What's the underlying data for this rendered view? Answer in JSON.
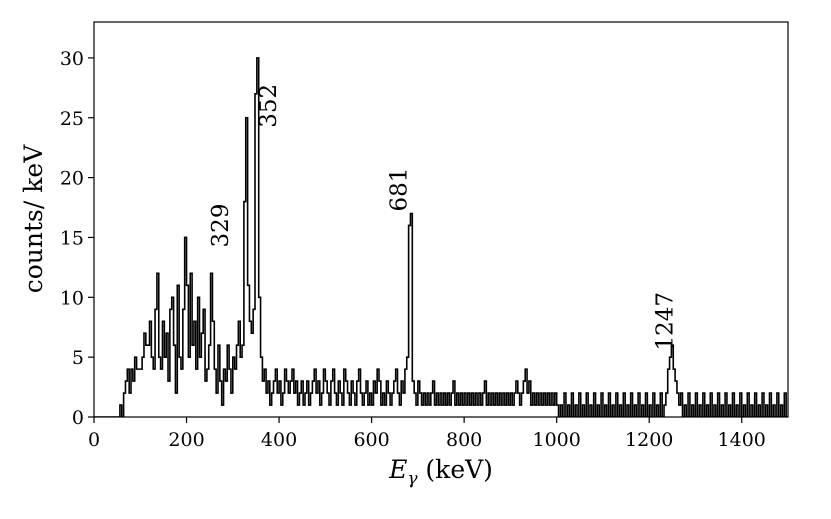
{
  "chart_data": {
    "type": "histogram",
    "title": "",
    "xlabel_main": "E",
    "xlabel_sub": "γ",
    "xlabel_unit": " (keV)",
    "ylabel": "counts/ keV",
    "xlim": [
      0,
      1500
    ],
    "ylim": [
      0,
      33
    ],
    "grid": false,
    "legend": "none",
    "line_color": "#000000",
    "bin_width_kev": 4,
    "x_ticks": [
      0,
      200,
      400,
      600,
      800,
      1000,
      1200,
      1400
    ],
    "y_ticks": [
      0,
      5,
      10,
      15,
      20,
      25,
      30
    ],
    "x_tick_labels": [
      "0",
      "200",
      "400",
      "600",
      "800",
      "1000",
      "1200",
      "1400"
    ],
    "y_tick_labels": [
      "0",
      "5",
      "10",
      "15",
      "20",
      "25",
      "30"
    ],
    "annotations": [
      {
        "text": "329",
        "x": 290,
        "y": 16
      },
      {
        "text": "352",
        "x": 393,
        "y": 26
      },
      {
        "text": "681",
        "x": 675,
        "y": 19
      },
      {
        "text": "1247",
        "x": 1250,
        "y": 8
      }
    ],
    "points": [
      [
        56,
        1
      ],
      [
        64,
        2
      ],
      [
        68,
        3
      ],
      [
        72,
        4
      ],
      [
        76,
        2
      ],
      [
        80,
        4
      ],
      [
        84,
        3
      ],
      [
        88,
        5
      ],
      [
        92,
        4
      ],
      [
        96,
        4
      ],
      [
        100,
        4
      ],
      [
        104,
        5
      ],
      [
        108,
        7
      ],
      [
        112,
        6
      ],
      [
        116,
        6
      ],
      [
        120,
        8
      ],
      [
        124,
        5
      ],
      [
        128,
        4
      ],
      [
        132,
        9
      ],
      [
        136,
        12
      ],
      [
        140,
        5
      ],
      [
        144,
        4
      ],
      [
        148,
        8
      ],
      [
        152,
        5
      ],
      [
        156,
        7
      ],
      [
        160,
        3
      ],
      [
        164,
        9
      ],
      [
        168,
        10
      ],
      [
        172,
        6
      ],
      [
        176,
        2
      ],
      [
        180,
        11
      ],
      [
        184,
        5
      ],
      [
        188,
        4
      ],
      [
        192,
        9
      ],
      [
        196,
        15
      ],
      [
        200,
        11
      ],
      [
        204,
        5
      ],
      [
        208,
        12
      ],
      [
        212,
        6
      ],
      [
        216,
        8
      ],
      [
        220,
        4
      ],
      [
        224,
        10
      ],
      [
        228,
        5
      ],
      [
        232,
        7
      ],
      [
        236,
        9
      ],
      [
        240,
        3
      ],
      [
        244,
        4
      ],
      [
        248,
        6
      ],
      [
        252,
        12
      ],
      [
        256,
        8
      ],
      [
        260,
        4
      ],
      [
        264,
        2
      ],
      [
        268,
        6
      ],
      [
        272,
        3
      ],
      [
        276,
        1
      ],
      [
        280,
        4
      ],
      [
        284,
        3
      ],
      [
        288,
        6
      ],
      [
        292,
        4
      ],
      [
        296,
        2
      ],
      [
        300,
        5
      ],
      [
        304,
        4
      ],
      [
        308,
        6
      ],
      [
        312,
        8
      ],
      [
        316,
        5
      ],
      [
        320,
        6
      ],
      [
        324,
        18
      ],
      [
        328,
        25
      ],
      [
        332,
        11
      ],
      [
        336,
        8
      ],
      [
        340,
        7
      ],
      [
        344,
        9
      ],
      [
        348,
        27
      ],
      [
        352,
        30
      ],
      [
        356,
        10
      ],
      [
        360,
        5
      ],
      [
        364,
        3
      ],
      [
        368,
        4
      ],
      [
        372,
        2
      ],
      [
        376,
        3
      ],
      [
        380,
        1
      ],
      [
        384,
        2
      ],
      [
        388,
        3
      ],
      [
        392,
        4
      ],
      [
        396,
        2
      ],
      [
        400,
        3
      ],
      [
        404,
        1
      ],
      [
        408,
        2
      ],
      [
        412,
        4
      ],
      [
        416,
        3
      ],
      [
        420,
        2
      ],
      [
        424,
        3
      ],
      [
        428,
        4
      ],
      [
        432,
        2
      ],
      [
        436,
        3
      ],
      [
        440,
        1
      ],
      [
        444,
        2
      ],
      [
        448,
        3
      ],
      [
        452,
        1
      ],
      [
        456,
        2
      ],
      [
        460,
        3
      ],
      [
        464,
        1
      ],
      [
        468,
        2
      ],
      [
        472,
        3
      ],
      [
        476,
        4
      ],
      [
        480,
        2
      ],
      [
        484,
        3
      ],
      [
        488,
        1
      ],
      [
        492,
        2
      ],
      [
        496,
        4
      ],
      [
        500,
        3
      ],
      [
        504,
        2
      ],
      [
        508,
        1
      ],
      [
        512,
        3
      ],
      [
        516,
        4
      ],
      [
        520,
        2
      ],
      [
        524,
        1
      ],
      [
        528,
        3
      ],
      [
        532,
        2
      ],
      [
        536,
        1
      ],
      [
        540,
        4
      ],
      [
        544,
        3
      ],
      [
        548,
        2
      ],
      [
        552,
        1
      ],
      [
        556,
        3
      ],
      [
        560,
        2
      ],
      [
        564,
        1
      ],
      [
        568,
        3
      ],
      [
        572,
        4
      ],
      [
        576,
        2
      ],
      [
        580,
        1
      ],
      [
        584,
        2
      ],
      [
        588,
        3
      ],
      [
        592,
        1
      ],
      [
        596,
        2
      ],
      [
        600,
        1
      ],
      [
        604,
        3
      ],
      [
        608,
        2
      ],
      [
        612,
        4
      ],
      [
        616,
        3
      ],
      [
        620,
        1
      ],
      [
        624,
        2
      ],
      [
        628,
        1
      ],
      [
        632,
        3
      ],
      [
        636,
        2
      ],
      [
        640,
        1
      ],
      [
        644,
        2
      ],
      [
        648,
        3
      ],
      [
        652,
        4
      ],
      [
        656,
        2
      ],
      [
        660,
        1
      ],
      [
        664,
        3
      ],
      [
        668,
        2
      ],
      [
        672,
        4
      ],
      [
        676,
        5
      ],
      [
        680,
        16
      ],
      [
        684,
        17
      ],
      [
        688,
        3
      ],
      [
        692,
        2
      ],
      [
        696,
        1
      ],
      [
        700,
        3
      ],
      [
        704,
        2
      ],
      [
        708,
        1
      ],
      [
        712,
        2
      ],
      [
        716,
        1
      ],
      [
        720,
        2
      ],
      [
        724,
        1
      ],
      [
        728,
        2
      ],
      [
        732,
        3
      ],
      [
        736,
        1
      ],
      [
        740,
        2
      ],
      [
        744,
        1
      ],
      [
        748,
        2
      ],
      [
        752,
        1
      ],
      [
        756,
        2
      ],
      [
        760,
        1
      ],
      [
        764,
        2
      ],
      [
        768,
        1
      ],
      [
        772,
        2
      ],
      [
        776,
        3
      ],
      [
        780,
        1
      ],
      [
        784,
        2
      ],
      [
        788,
        1
      ],
      [
        792,
        2
      ],
      [
        796,
        1
      ],
      [
        800,
        2
      ],
      [
        804,
        1
      ],
      [
        808,
        2
      ],
      [
        812,
        1
      ],
      [
        816,
        2
      ],
      [
        820,
        1
      ],
      [
        824,
        2
      ],
      [
        828,
        1
      ],
      [
        832,
        2
      ],
      [
        836,
        1
      ],
      [
        840,
        2
      ],
      [
        844,
        3
      ],
      [
        848,
        1
      ],
      [
        852,
        2
      ],
      [
        856,
        1
      ],
      [
        860,
        2
      ],
      [
        864,
        1
      ],
      [
        868,
        2
      ],
      [
        872,
        1
      ],
      [
        876,
        2
      ],
      [
        880,
        1
      ],
      [
        884,
        2
      ],
      [
        888,
        1
      ],
      [
        892,
        2
      ],
      [
        896,
        1
      ],
      [
        900,
        2
      ],
      [
        904,
        1
      ],
      [
        908,
        2
      ],
      [
        912,
        3
      ],
      [
        916,
        2
      ],
      [
        920,
        1
      ],
      [
        924,
        2
      ],
      [
        928,
        3
      ],
      [
        932,
        4
      ],
      [
        936,
        2
      ],
      [
        940,
        3
      ],
      [
        944,
        1
      ],
      [
        948,
        2
      ],
      [
        952,
        1
      ],
      [
        956,
        2
      ],
      [
        960,
        1
      ],
      [
        964,
        2
      ],
      [
        968,
        1
      ],
      [
        972,
        2
      ],
      [
        976,
        1
      ],
      [
        980,
        2
      ],
      [
        984,
        1
      ],
      [
        988,
        2
      ],
      [
        992,
        1
      ],
      [
        996,
        2
      ],
      [
        1000,
        1
      ],
      [
        1008,
        1
      ],
      [
        1016,
        2
      ],
      [
        1024,
        1
      ],
      [
        1032,
        2
      ],
      [
        1040,
        1
      ],
      [
        1048,
        2
      ],
      [
        1056,
        1
      ],
      [
        1064,
        2
      ],
      [
        1072,
        1
      ],
      [
        1080,
        2
      ],
      [
        1088,
        1
      ],
      [
        1096,
        2
      ],
      [
        1104,
        1
      ],
      [
        1112,
        2
      ],
      [
        1120,
        1
      ],
      [
        1128,
        2
      ],
      [
        1136,
        1
      ],
      [
        1144,
        2
      ],
      [
        1152,
        1
      ],
      [
        1160,
        2
      ],
      [
        1168,
        1
      ],
      [
        1176,
        2
      ],
      [
        1184,
        1
      ],
      [
        1192,
        2
      ],
      [
        1200,
        1
      ],
      [
        1208,
        2
      ],
      [
        1216,
        1
      ],
      [
        1224,
        2
      ],
      [
        1232,
        1
      ],
      [
        1236,
        2
      ],
      [
        1240,
        4
      ],
      [
        1244,
        5
      ],
      [
        1248,
        6
      ],
      [
        1252,
        4
      ],
      [
        1256,
        3
      ],
      [
        1260,
        2
      ],
      [
        1264,
        1
      ],
      [
        1268,
        2
      ],
      [
        1276,
        1
      ],
      [
        1284,
        2
      ],
      [
        1292,
        1
      ],
      [
        1300,
        2
      ],
      [
        1308,
        1
      ],
      [
        1316,
        2
      ],
      [
        1324,
        1
      ],
      [
        1332,
        2
      ],
      [
        1340,
        1
      ],
      [
        1348,
        2
      ],
      [
        1356,
        1
      ],
      [
        1364,
        2
      ],
      [
        1372,
        1
      ],
      [
        1380,
        2
      ],
      [
        1388,
        1
      ],
      [
        1396,
        2
      ],
      [
        1404,
        1
      ],
      [
        1412,
        2
      ],
      [
        1420,
        1
      ],
      [
        1428,
        2
      ],
      [
        1436,
        1
      ],
      [
        1444,
        2
      ],
      [
        1452,
        1
      ],
      [
        1460,
        2
      ],
      [
        1468,
        1
      ],
      [
        1476,
        2
      ],
      [
        1484,
        1
      ],
      [
        1492,
        2
      ]
    ]
  }
}
